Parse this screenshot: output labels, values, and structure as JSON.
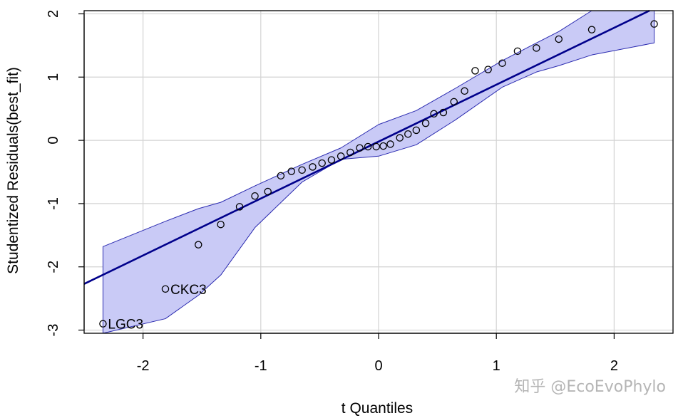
{
  "chart_data": {
    "type": "scatter",
    "title": "",
    "xlabel": "t Quantiles",
    "ylabel": "Studentized Residuals(best_fit)",
    "xlim": [
      -2.5,
      2.5
    ],
    "ylim": [
      -3.05,
      2.05
    ],
    "x_ticks": [
      -2,
      -1,
      0,
      1,
      2
    ],
    "y_ticks": [
      -3,
      -2,
      -1,
      0,
      1,
      2
    ],
    "grid": true,
    "points": {
      "x": [
        -2.34,
        -1.81,
        -1.53,
        -1.34,
        -1.18,
        -1.05,
        -0.94,
        -0.83,
        -0.74,
        -0.65,
        -0.56,
        -0.48,
        -0.4,
        -0.32,
        -0.24,
        -0.16,
        -0.09,
        -0.02,
        0.04,
        0.1,
        0.18,
        0.25,
        0.32,
        0.4,
        0.47,
        0.55,
        0.64,
        0.73,
        0.82,
        0.93,
        1.05,
        1.18,
        1.34,
        1.53,
        1.81,
        2.34
      ],
      "y": [
        -2.9,
        -2.35,
        -1.65,
        -1.33,
        -1.05,
        -0.88,
        -0.81,
        -0.56,
        -0.49,
        -0.47,
        -0.42,
        -0.36,
        -0.31,
        -0.25,
        -0.19,
        -0.12,
        -0.1,
        -0.1,
        -0.09,
        -0.06,
        0.04,
        0.1,
        0.16,
        0.27,
        0.42,
        0.44,
        0.61,
        0.78,
        1.1,
        1.12,
        1.22,
        1.41,
        1.46,
        1.6,
        1.75,
        1.84
      ]
    },
    "labels": [
      {
        "text": "LGC3",
        "x": -2.34,
        "y": -2.9
      },
      {
        "text": "CKC3",
        "x": -1.81,
        "y": -2.35
      }
    ],
    "reference_line": {
      "intercept": -0.02,
      "slope": 0.9
    },
    "confidence_band": {
      "x": [
        -2.34,
        -1.81,
        -1.53,
        -1.34,
        -1.05,
        -0.65,
        -0.32,
        0.0,
        0.32,
        0.65,
        1.05,
        1.34,
        1.53,
        1.81,
        2.34
      ],
      "upper": [
        -1.68,
        -1.28,
        -1.08,
        -0.98,
        -0.72,
        -0.38,
        -0.12,
        0.25,
        0.47,
        0.82,
        1.26,
        1.54,
        1.72,
        2.05,
        2.05
      ],
      "lower": [
        -3.05,
        -2.82,
        -2.45,
        -2.13,
        -1.38,
        -0.66,
        -0.3,
        -0.25,
        -0.07,
        0.32,
        0.84,
        1.08,
        1.18,
        1.35,
        1.54
      ]
    },
    "colors": {
      "line": "#00008b",
      "band_fill": "#c9caf6",
      "band_edge": "#2b2bb0",
      "grid": "#d3d3d3",
      "points": "#000000"
    }
  },
  "watermark": "知乎 @EcoEvoPhylo"
}
